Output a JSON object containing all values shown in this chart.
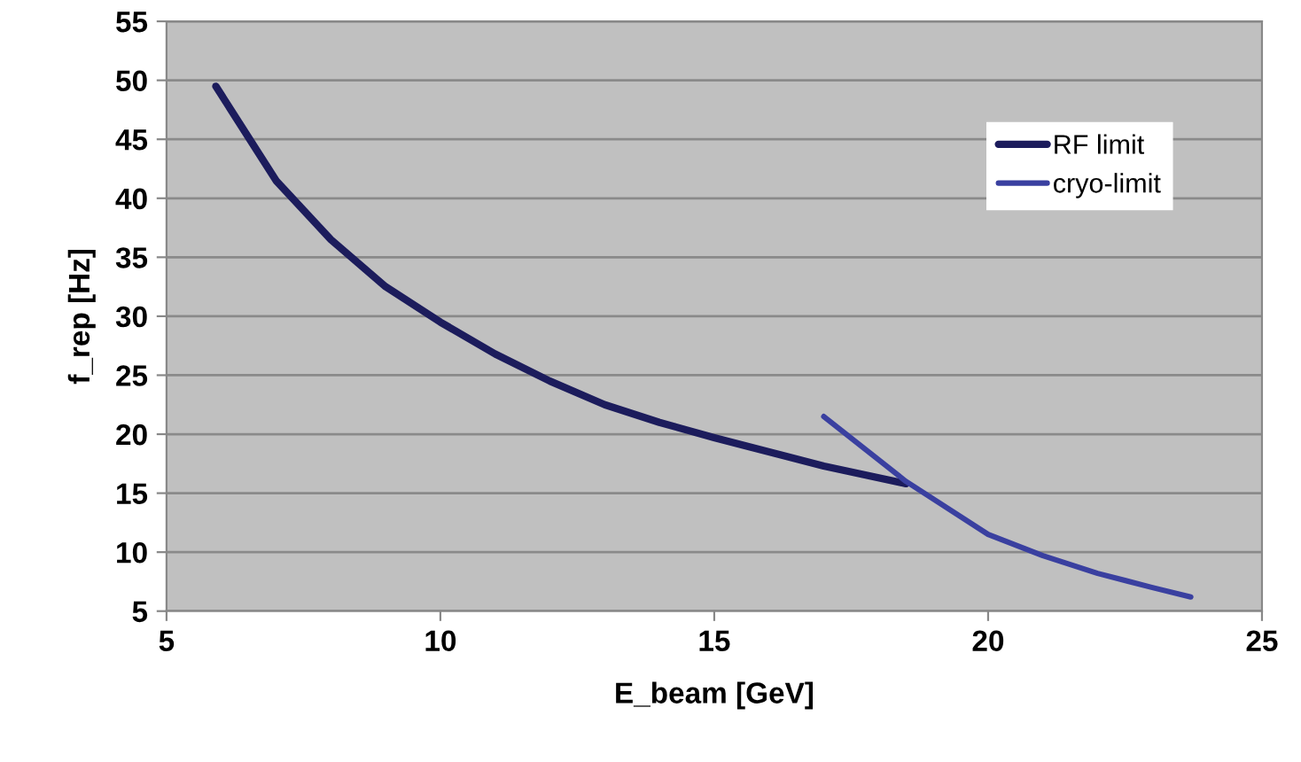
{
  "chart_data": {
    "type": "line",
    "xlabel": "E_beam [GeV]",
    "ylabel": "f_rep [Hz]",
    "xlim": [
      5,
      25
    ],
    "xticks": [
      5,
      10,
      15,
      20,
      25
    ],
    "ylim": [
      5,
      55
    ],
    "yticks": [
      5,
      10,
      15,
      20,
      25,
      30,
      35,
      40,
      45,
      50,
      55
    ],
    "grid": "y",
    "legend": "top right",
    "marker": "none",
    "line_style": "solid",
    "series": [
      {
        "name": "RF limit",
        "color": "#1c1c5c",
        "x": [
          5.9,
          7,
          8,
          9,
          10,
          11,
          12,
          13,
          14,
          15,
          16,
          17,
          18.5
        ],
        "values": [
          49.5,
          41.5,
          36.5,
          32.5,
          29.5,
          26.8,
          24.5,
          22.5,
          21,
          19.7,
          18.5,
          17.3,
          15.8
        ]
      },
      {
        "name": "cryo-limit",
        "color": "#3a40a0",
        "x": [
          17,
          18.5,
          20,
          21,
          22,
          23,
          23.7
        ],
        "values": [
          21.5,
          16,
          11.5,
          9.7,
          8.2,
          7,
          6.2
        ]
      }
    ]
  }
}
